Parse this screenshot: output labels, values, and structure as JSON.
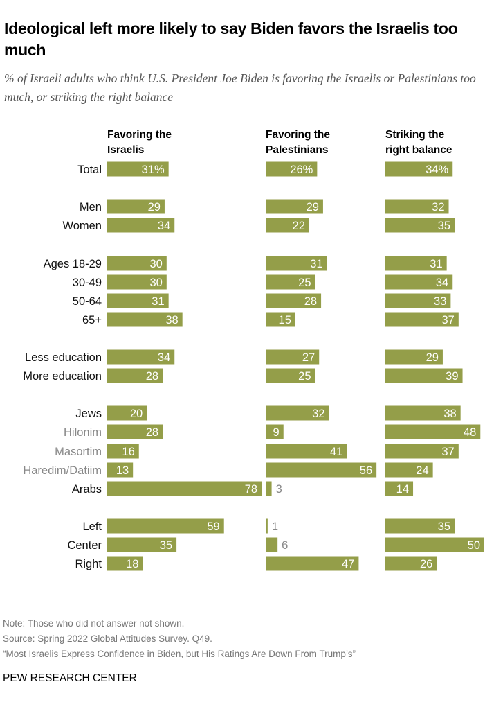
{
  "title": "Ideological left more likely to say Biden favors the Israelis too much",
  "subtitle": "% of Israeli adults who think U.S. President Joe Biden is favoring the Israelis or Palestinians too much, or striking the right balance",
  "notes": [
    "Note: Those who did not answer not shown.",
    "Source: Spring 2022 Global Attitudes Survey. Q49.",
    "“Most Israelis Express Confidence in Biden, but His Ratings Are Down From Trump’s”"
  ],
  "brand": "PEW RESEARCH CENTER",
  "chart_data": {
    "type": "bar",
    "orientation": "horizontal",
    "bar_color": "#949e49",
    "categories": [
      "Total",
      "Men",
      "Women",
      "Ages 18-29",
      "30-49",
      "50-64",
      "65+",
      "Less education",
      "More education",
      "Jews",
      "Hilonim",
      "Masortim",
      "Haredim/Datiim",
      "Arabs",
      "Left",
      "Center",
      "Right"
    ],
    "subgroup_categories": [
      "Hilonim",
      "Masortim",
      "Haredim/Datiim"
    ],
    "total_suffix": "%",
    "series": [
      {
        "name": "Favoring the Israelis",
        "values": [
          31,
          29,
          34,
          30,
          30,
          31,
          38,
          34,
          28,
          20,
          28,
          16,
          13,
          78,
          59,
          35,
          18
        ]
      },
      {
        "name": "Favoring the Palestinians",
        "values": [
          26,
          29,
          22,
          31,
          25,
          28,
          15,
          27,
          25,
          32,
          9,
          41,
          56,
          3,
          1,
          6,
          47
        ]
      },
      {
        "name": "Striking the right balance",
        "values": [
          34,
          32,
          35,
          31,
          34,
          33,
          37,
          29,
          39,
          38,
          48,
          37,
          24,
          14,
          35,
          50,
          26
        ]
      }
    ]
  }
}
